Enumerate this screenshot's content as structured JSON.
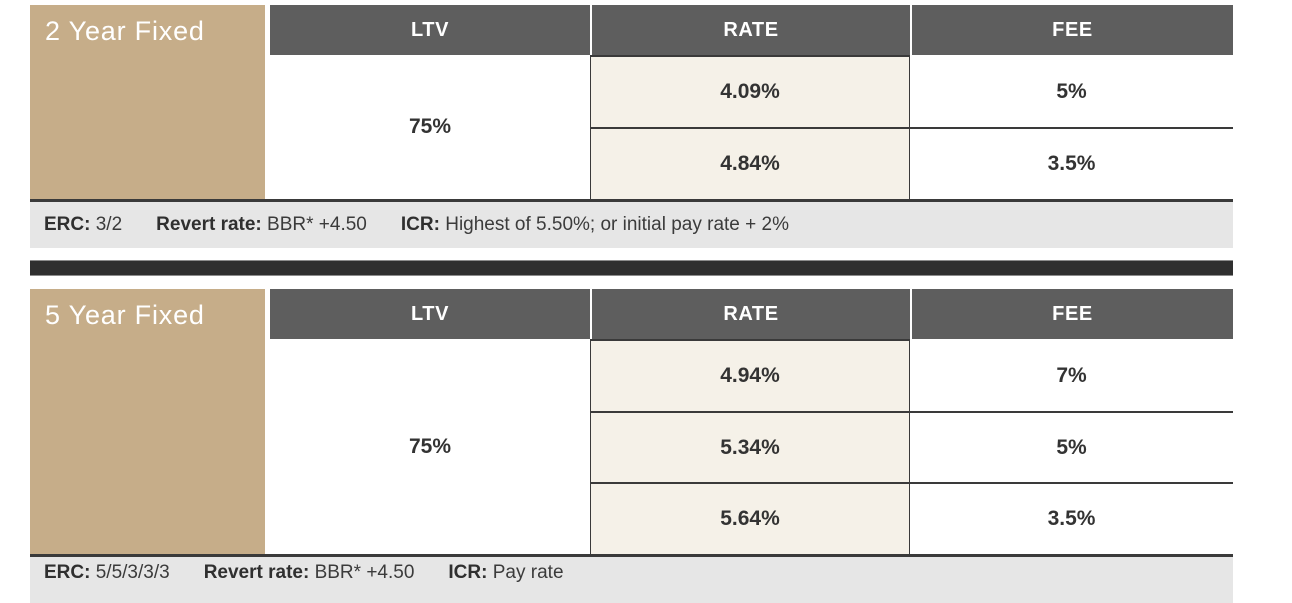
{
  "colors": {
    "tan": "#c6ad89",
    "header_gray": "#5e5e5e",
    "rate_cream": "#f5f1e8",
    "strip_gray": "#e6e6e6",
    "divider_black": "#2f2f2f",
    "border_dark": "#3a3a3a",
    "text_dark": "#333333"
  },
  "tables": [
    {
      "product": "2 Year Fixed",
      "ltv_header": "LTV",
      "rate_header": "RATE",
      "fee_header": "FEE",
      "ltv": "75%",
      "rows": [
        {
          "rate": "4.09%",
          "fee": "5%"
        },
        {
          "rate": "4.84%",
          "fee": "3.5%"
        }
      ],
      "footnote": {
        "erc_label": "ERC:",
        "erc_value": "3/2",
        "revert_label": "Revert rate:",
        "revert_value": "BBR* +4.50",
        "icr_label": "ICR:",
        "icr_value": "Highest of 5.50%; or initial pay rate + 2%"
      }
    },
    {
      "product": "5 Year Fixed",
      "ltv_header": "LTV",
      "rate_header": "RATE",
      "fee_header": "FEE",
      "ltv": "75%",
      "rows": [
        {
          "rate": "4.94%",
          "fee": "7%"
        },
        {
          "rate": "5.34%",
          "fee": "5%"
        },
        {
          "rate": "5.64%",
          "fee": "3.5%"
        }
      ],
      "footnote": {
        "erc_label": "ERC:",
        "erc_value": "5/5/3/3/3",
        "revert_label": "Revert rate:",
        "revert_value": "BBR* +4.50",
        "icr_label": "ICR:",
        "icr_value": "Pay rate"
      }
    }
  ]
}
